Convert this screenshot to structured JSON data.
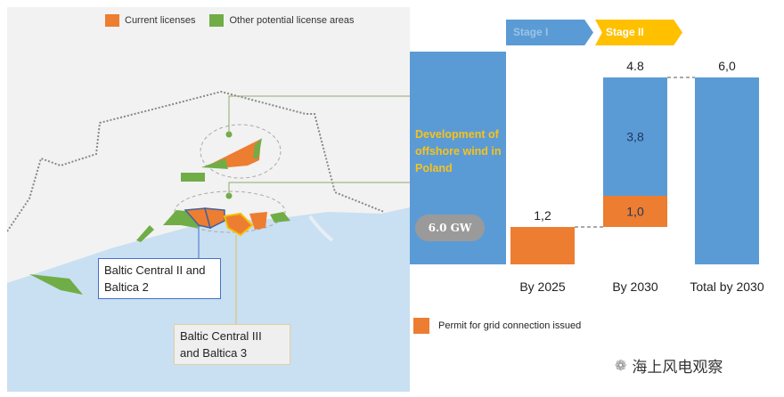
{
  "map": {
    "legend": [
      {
        "label": "Current licenses",
        "color": "#ed7d31"
      },
      {
        "label": "Other potential license areas",
        "color": "#70ad47"
      }
    ],
    "callouts": [
      {
        "text": "Baltic Central II and Baltica 2",
        "border": "#4472c4"
      },
      {
        "text": "Baltic Central III and Baltica 3",
        "border": "#f0c040"
      }
    ]
  },
  "stages": [
    {
      "label": "Stage I",
      "color": "#5b9bd5"
    },
    {
      "label": "Stage II",
      "color": "#ffc000"
    }
  ],
  "panel": {
    "title": "Development of offshore wind in Poland",
    "badge": "6.0 GW"
  },
  "legend_bottom": {
    "label": "Permit for grid connection issued",
    "color": "#ed7d31"
  },
  "watermark": {
    "text": "海上风电观察"
  },
  "chart_data": {
    "type": "bar",
    "subtype": "waterfall",
    "categories": [
      "By 2025",
      "By 2030",
      "Total  by 2030"
    ],
    "segments": [
      {
        "category": "By 2025",
        "base": 0,
        "value": 1.2,
        "label": "1,2",
        "color": "#ed7d31"
      },
      {
        "category": "By 2030",
        "base": 1.2,
        "value": 1.0,
        "label": "1,0",
        "color": "#ed7d31"
      },
      {
        "category": "By 2030",
        "base": 2.2,
        "value": 3.8,
        "label": "3,8",
        "color": "#5b9bd5"
      },
      {
        "category": "Total  by 2030",
        "base": 0,
        "value": 6.0,
        "label": "",
        "color": "#5b9bd5"
      }
    ],
    "totals": [
      {
        "category": "By 2030",
        "label": "4.8"
      },
      {
        "category": "Total  by 2030",
        "label": "6,0"
      }
    ],
    "unit": "GW",
    "ylim": [
      0,
      6.0
    ],
    "grid": false
  }
}
